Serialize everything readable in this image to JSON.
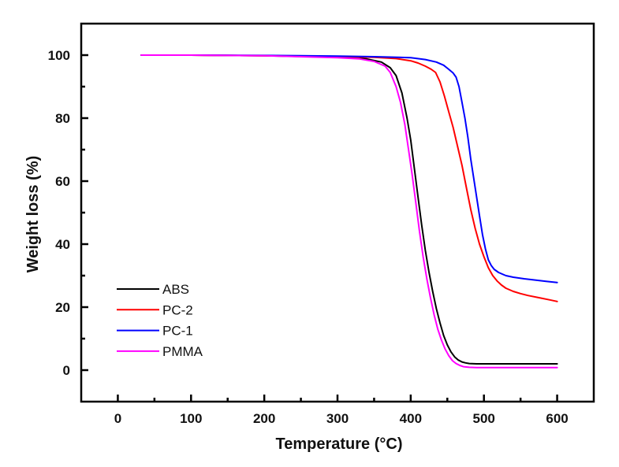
{
  "chart_data": {
    "type": "line",
    "title": "",
    "xlabel": "Temperature (°C)",
    "ylabel": "Weight loss (%)",
    "xlim": [
      -50,
      650
    ],
    "ylim": [
      -10,
      110
    ],
    "xticks": [
      0,
      100,
      200,
      300,
      400,
      500,
      600
    ],
    "xtick_labels": [
      "0",
      "100",
      "200",
      "300",
      "400",
      "500",
      "600"
    ],
    "xminor": [
      50,
      150,
      250,
      350,
      450,
      550
    ],
    "yticks": [
      0,
      20,
      40,
      60,
      80,
      100
    ],
    "ytick_labels": [
      "0",
      "20",
      "40",
      "60",
      "80",
      "100"
    ],
    "yminor": [
      10,
      30,
      50,
      70,
      90
    ],
    "grid": false,
    "legend_position": "lower-left",
    "series": [
      {
        "name": "ABS",
        "color": "#000000",
        "x": [
          32,
          100,
          200,
          300,
          340,
          360,
          372,
          380,
          388,
          395,
          400,
          405,
          410,
          415,
          420,
          425,
          430,
          435,
          440,
          445,
          450,
          455,
          460,
          465,
          470,
          475,
          480,
          490,
          500,
          550,
          600
        ],
        "y": [
          100,
          100,
          99.8,
          99.3,
          98.8,
          97.8,
          96,
          93.5,
          88,
          80,
          73,
          64,
          55,
          46,
          38,
          31,
          25,
          19.5,
          15,
          11,
          8,
          5.8,
          4.2,
          3.2,
          2.6,
          2.3,
          2.1,
          2.0,
          2.0,
          2.0,
          2.0
        ]
      },
      {
        "name": "PC-2",
        "color": "#ff0000",
        "x": [
          32,
          100,
          200,
          300,
          350,
          380,
          400,
          410,
          420,
          428,
          434,
          440,
          446,
          452,
          458,
          464,
          470,
          476,
          482,
          488,
          494,
          500,
          506,
          512,
          518,
          524,
          530,
          540,
          550,
          560,
          575,
          590,
          600
        ],
        "y": [
          100,
          100,
          99.8,
          99.5,
          99.3,
          98.9,
          98.2,
          97.5,
          96.5,
          95.5,
          94.5,
          91.5,
          87,
          82,
          77,
          71,
          65,
          58,
          51,
          45,
          40,
          36,
          32.5,
          30,
          28.3,
          27,
          26,
          25,
          24.3,
          23.7,
          23,
          22.3,
          21.8
        ]
      },
      {
        "name": "PC-1",
        "color": "#0000ff",
        "x": [
          32,
          100,
          200,
          300,
          350,
          400,
          420,
          435,
          445,
          452,
          458,
          462,
          466,
          470,
          474,
          478,
          482,
          486,
          490,
          494,
          498,
          502,
          506,
          510,
          514,
          520,
          530,
          540,
          555,
          570,
          585,
          600
        ],
        "y": [
          100,
          100,
          99.9,
          99.7,
          99.5,
          99.2,
          98.6,
          97.8,
          96.8,
          95.5,
          94.3,
          93,
          90,
          85,
          80,
          74,
          67,
          61,
          55,
          49,
          43,
          38.5,
          35,
          33.2,
          32,
          31,
          30,
          29.5,
          29,
          28.6,
          28.2,
          27.8
        ]
      },
      {
        "name": "PMMA",
        "color": "#ff00ff",
        "x": [
          32,
          100,
          200,
          300,
          330,
          350,
          365,
          372,
          380,
          386,
          392,
          397,
          402,
          407,
          412,
          417,
          422,
          427,
          432,
          437,
          442,
          447,
          452,
          457,
          462,
          467,
          472,
          480,
          490,
          500,
          550,
          600
        ],
        "y": [
          100,
          100,
          99.8,
          99.2,
          98.8,
          98,
          96.5,
          94.5,
          90,
          85,
          78,
          70,
          62,
          53,
          44,
          36,
          29,
          23,
          17.5,
          13,
          9.5,
          6.7,
          4.6,
          3,
          2.1,
          1.5,
          1.1,
          0.9,
          0.8,
          0.8,
          0.8,
          0.8
        ]
      }
    ]
  }
}
